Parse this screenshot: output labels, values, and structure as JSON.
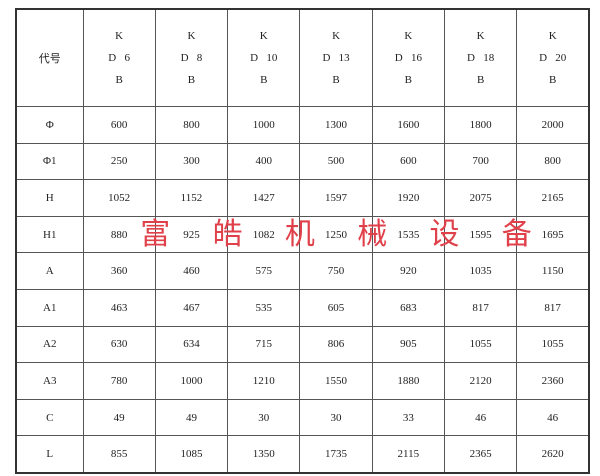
{
  "table": {
    "corner_label": "代号",
    "columns": [
      {
        "k": "K",
        "d": "D",
        "n": "6",
        "b": "B"
      },
      {
        "k": "K",
        "d": "D",
        "n": "8",
        "b": "B"
      },
      {
        "k": "K",
        "d": "D",
        "n": "10",
        "b": "B"
      },
      {
        "k": "K",
        "d": "D",
        "n": "13",
        "b": "B"
      },
      {
        "k": "K",
        "d": "D",
        "n": "16",
        "b": "B"
      },
      {
        "k": "K",
        "d": "D",
        "n": "18",
        "b": "B"
      },
      {
        "k": "K",
        "d": "D",
        "n": "20",
        "b": "B"
      }
    ],
    "rows": [
      {
        "label": "Φ",
        "values": [
          "600",
          "800",
          "1000",
          "1300",
          "1600",
          "1800",
          "2000"
        ]
      },
      {
        "label": "Φ1",
        "values": [
          "250",
          "300",
          "400",
          "500",
          "600",
          "700",
          "800"
        ]
      },
      {
        "label": "H",
        "values": [
          "1052",
          "1152",
          "1427",
          "1597",
          "1920",
          "2075",
          "2165"
        ]
      },
      {
        "label": "H1",
        "values": [
          "880",
          "925",
          "1082",
          "1250",
          "1535",
          "1595",
          "1695"
        ]
      },
      {
        "label": "A",
        "values": [
          "360",
          "460",
          "575",
          "750",
          "920",
          "1035",
          "1150"
        ]
      },
      {
        "label": "A1",
        "values": [
          "463",
          "467",
          "535",
          "605",
          "683",
          "817",
          "817"
        ]
      },
      {
        "label": "A2",
        "values": [
          "630",
          "634",
          "715",
          "806",
          "905",
          "1055",
          "1055"
        ]
      },
      {
        "label": "A3",
        "values": [
          "780",
          "1000",
          "1210",
          "1550",
          "1880",
          "2120",
          "2360"
        ]
      },
      {
        "label": "C",
        "values": [
          "49",
          "49",
          "30",
          "30",
          "33",
          "46",
          "46"
        ]
      },
      {
        "label": "L",
        "values": [
          "855",
          "1085",
          "1350",
          "1735",
          "2115",
          "2365",
          "2620"
        ]
      }
    ]
  },
  "watermark": "富皓机械设备"
}
